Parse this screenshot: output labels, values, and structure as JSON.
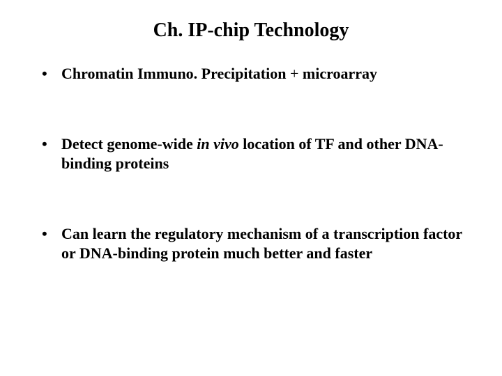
{
  "slide": {
    "title": "Ch. IP-chip Technology",
    "bullets": [
      {
        "prefix": "Chromatin Immuno. Precipitation ",
        "plus_sign": "+ ",
        "suffix": "microarray"
      },
      {
        "prefix": "Detect genome-wide ",
        "italic_text": "in vivo",
        "suffix": " location of TF and other DNA-binding proteins"
      },
      {
        "full_text": "Can learn the regulatory mechanism of a transcription factor or DNA-binding protein much better and faster"
      }
    ]
  },
  "styling": {
    "background_color": "#ffffff",
    "text_color": "#000000",
    "font_family": "Times New Roman",
    "title_fontsize": 28,
    "body_fontsize": 22,
    "title_weight": "bold",
    "body_weight": "bold",
    "bullet_spacing": 72
  }
}
